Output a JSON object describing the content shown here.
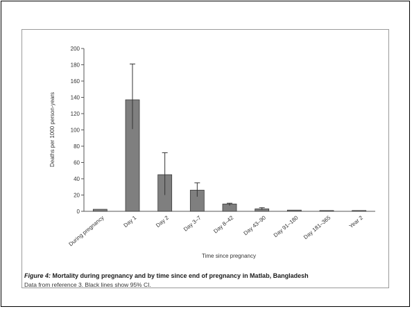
{
  "chart_data": {
    "type": "bar",
    "ylabel": "Deaths per 1000 person-years",
    "xlabel": "Time since pregnancy",
    "ylim": [
      0,
      200
    ],
    "yticks": [
      0,
      20,
      40,
      60,
      80,
      100,
      120,
      140,
      160,
      180,
      200
    ],
    "categories": [
      "During pregnancy",
      "Day 1",
      "Day 2",
      "Day 3–7",
      "Day 8–42",
      "Day 43–90",
      "Day 91–180",
      "Day 181–365",
      "Year 2"
    ],
    "values": [
      2.5,
      137,
      45,
      26,
      9,
      3,
      1.5,
      1,
      1
    ],
    "ci_lower": [
      null,
      101,
      20,
      18,
      7,
      2,
      null,
      null,
      null
    ],
    "ci_upper": [
      null,
      181,
      72,
      35,
      10,
      4.5,
      null,
      null,
      null
    ],
    "colors": {
      "bar": "#7f7f7f",
      "bar_stroke": "#3a3a3a",
      "axis": "#555555",
      "error": "#333333"
    }
  },
  "caption": {
    "figure_number": "Figure 4:",
    "title": " Mortality during pregnancy and by time since end of pregnancy in Matlab, Bangladesh",
    "note": "Data from reference 3. Black lines show 95% CI."
  }
}
